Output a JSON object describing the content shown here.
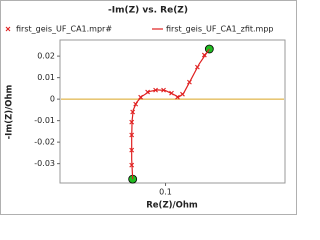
{
  "chart_data": {
    "type": "line",
    "title": "-Im(Z) vs. Re(Z)",
    "x_label": "Re(Z)/Ohm",
    "y_label": "-Im(Z)/Ohm",
    "xlim": [
      0.047,
      0.16
    ],
    "xticks": [
      0.1
    ],
    "ylim": [
      -0.039,
      0.0275
    ],
    "yticks": [
      0.02,
      0.01,
      0,
      -0.01,
      -0.02,
      -0.03
    ],
    "zero_line_color": "#d9a520",
    "endpoint_color": "#22bb22",
    "series": [
      {
        "name": "first_geis_UF_CA1.mpr#",
        "color": "#e02020",
        "style": "marker",
        "x": [
          0.0835,
          0.083,
          0.083,
          0.083,
          0.083,
          0.0835,
          0.085,
          0.0875,
          0.091,
          0.095,
          0.099,
          0.103,
          0.106,
          0.1085,
          0.112,
          0.116,
          0.1195,
          0.122
        ],
        "values": [
          -0.0372,
          -0.0307,
          -0.0237,
          -0.0167,
          -0.0107,
          -0.006,
          -0.0023,
          0.0009,
          0.0033,
          0.0042,
          0.0042,
          0.0028,
          0.0009,
          0.0023,
          0.0079,
          0.0149,
          0.0205,
          0.0233
        ]
      },
      {
        "name": "first_geis_UF_CA1_zfit.mpp",
        "color": "#e02020",
        "style": "line",
        "x": [
          0.0835,
          0.083,
          0.083,
          0.0832,
          0.0838,
          0.0855,
          0.088,
          0.092,
          0.096,
          0.1,
          0.104,
          0.1065,
          0.109,
          0.113,
          0.117,
          0.122
        ],
        "values": [
          -0.0372,
          -0.028,
          -0.018,
          -0.01,
          -0.005,
          -0.0015,
          0.0012,
          0.0036,
          0.0043,
          0.004,
          0.0022,
          0.0009,
          0.0026,
          0.0095,
          0.0165,
          0.0233
        ]
      }
    ]
  }
}
